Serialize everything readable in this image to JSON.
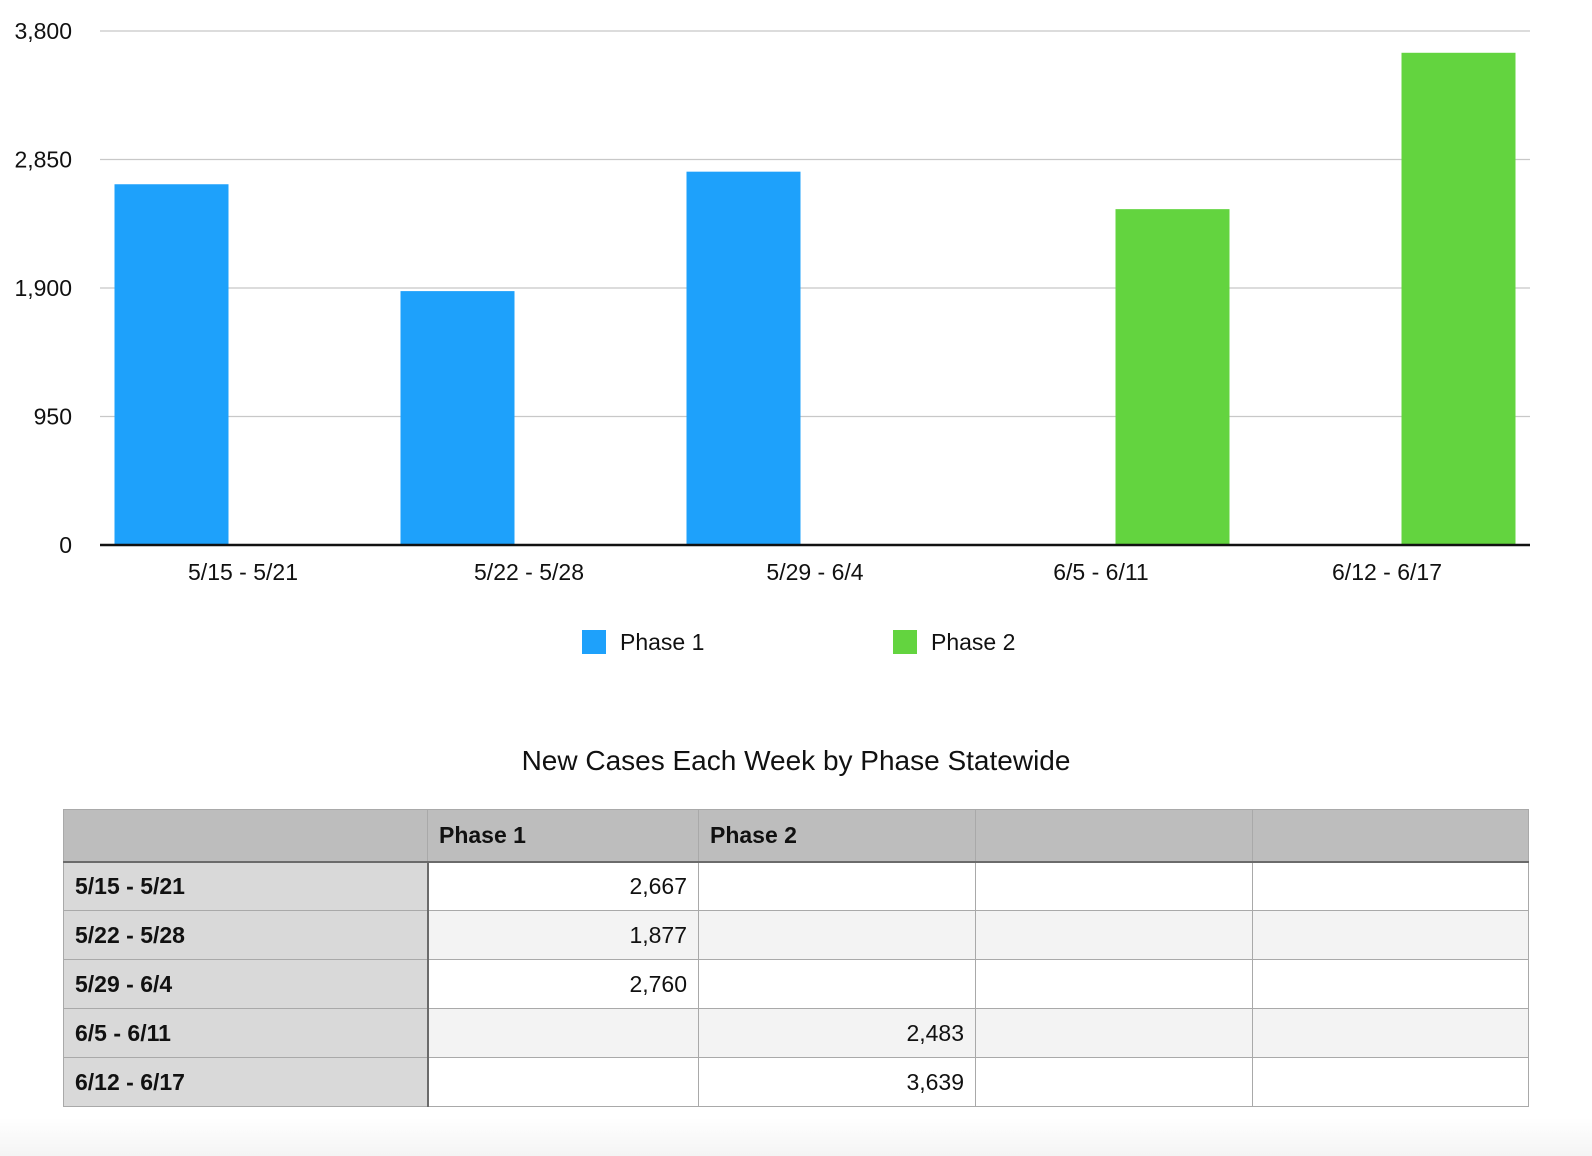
{
  "chart_data": {
    "type": "bar",
    "categories": [
      "5/15 - 5/21",
      "5/22 - 5/28",
      "5/29 - 6/4",
      "6/5 - 6/11",
      "6/12 - 6/17"
    ],
    "series": [
      {
        "name": "Phase 1",
        "color": "#1ea1fb",
        "values": [
          2667,
          1877,
          2760,
          null,
          null
        ]
      },
      {
        "name": "Phase 2",
        "color": "#63d43f",
        "values": [
          null,
          null,
          null,
          2483,
          3639
        ]
      }
    ],
    "yticks": [
      0,
      950,
      1900,
      2850,
      3800
    ],
    "ytick_labels": [
      "0",
      "950",
      "1,900",
      "2,850",
      "3,800"
    ],
    "ylim": [
      0,
      3800
    ],
    "grid": true,
    "legend": "bottom-center"
  },
  "table": {
    "title": "New Cases Each Week by Phase Statewide",
    "headers": [
      "",
      "Phase 1",
      "Phase 2",
      "",
      ""
    ],
    "rows": [
      {
        "label": "5/15 - 5/21",
        "cells": [
          "2,667",
          "",
          "",
          ""
        ]
      },
      {
        "label": "5/22 - 5/28",
        "cells": [
          "1,877",
          "",
          "",
          ""
        ]
      },
      {
        "label": "5/29 - 6/4",
        "cells": [
          "2,760",
          "",
          "",
          ""
        ]
      },
      {
        "label": "6/5 - 6/11",
        "cells": [
          "",
          "2,483",
          "",
          ""
        ]
      },
      {
        "label": "6/12 - 6/17",
        "cells": [
          "",
          "3,639",
          "",
          ""
        ]
      }
    ]
  }
}
